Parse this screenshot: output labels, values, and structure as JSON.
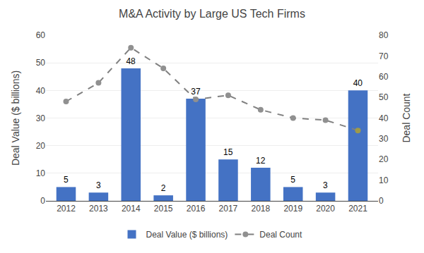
{
  "chart_data": {
    "type": "bar",
    "title": "M&A Activity by Large US Tech Firms",
    "categories": [
      "2012",
      "2013",
      "2014",
      "2015",
      "2016",
      "2017",
      "2018",
      "2019",
      "2020",
      "2021"
    ],
    "series": [
      {
        "name": "Deal Value ($ billions)",
        "type": "bar",
        "color": "#4472C4",
        "data_labels": true,
        "values": [
          5,
          3,
          48,
          2,
          37,
          15,
          12,
          5,
          3,
          40
        ]
      },
      {
        "name": "Deal Count",
        "type": "line",
        "axis": "y2",
        "color": "#808080",
        "line_style": "dashed",
        "marker": "circle",
        "colors": [
          "#909090",
          "#909090",
          "#909090",
          "#909090",
          "#909090",
          "#909090",
          "#909090",
          "#909090",
          "#909090",
          "#9E9A4A"
        ],
        "values": [
          48,
          57,
          74,
          64,
          49,
          51,
          44,
          40,
          39,
          34
        ]
      }
    ],
    "ylabel": "Deal Value ($ billions)",
    "y2label": "Deal Count",
    "ylim": [
      0,
      60
    ],
    "yticks": [
      0,
      10,
      20,
      30,
      40,
      50,
      60
    ],
    "y2lim": [
      0,
      80
    ],
    "y2ticks": [
      0,
      10,
      20,
      30,
      40,
      50,
      60,
      70,
      80
    ],
    "grid": true,
    "legend": "bottom"
  }
}
